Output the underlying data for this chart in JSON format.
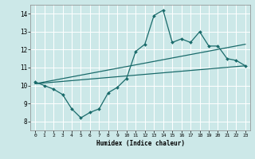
{
  "xlabel": "Humidex (Indice chaleur)",
  "xlim": [
    -0.5,
    23.5
  ],
  "ylim": [
    7.5,
    14.5
  ],
  "yticks": [
    8,
    9,
    10,
    11,
    12,
    13,
    14
  ],
  "xticks": [
    0,
    1,
    2,
    3,
    4,
    5,
    6,
    7,
    8,
    9,
    10,
    11,
    12,
    13,
    14,
    15,
    16,
    17,
    18,
    19,
    20,
    21,
    22,
    23
  ],
  "bg_color": "#cce8e8",
  "grid_color": "#ffffff",
  "line_color": "#1a6b6b",
  "line1_x": [
    0,
    1,
    2,
    3,
    4,
    5,
    6,
    7,
    8,
    9,
    10,
    11,
    12,
    13,
    14,
    15,
    16,
    17,
    18,
    19,
    20,
    21,
    22,
    23
  ],
  "line1_y": [
    10.2,
    10.0,
    9.8,
    9.5,
    8.7,
    8.2,
    8.5,
    8.7,
    9.6,
    9.9,
    10.4,
    11.9,
    12.3,
    13.9,
    14.2,
    12.4,
    12.6,
    12.4,
    13.0,
    12.2,
    12.2,
    11.5,
    11.4,
    11.1
  ],
  "line2_x": [
    0,
    23
  ],
  "line2_y": [
    10.1,
    12.3
  ],
  "line3_x": [
    0,
    23
  ],
  "line3_y": [
    10.1,
    11.1
  ]
}
